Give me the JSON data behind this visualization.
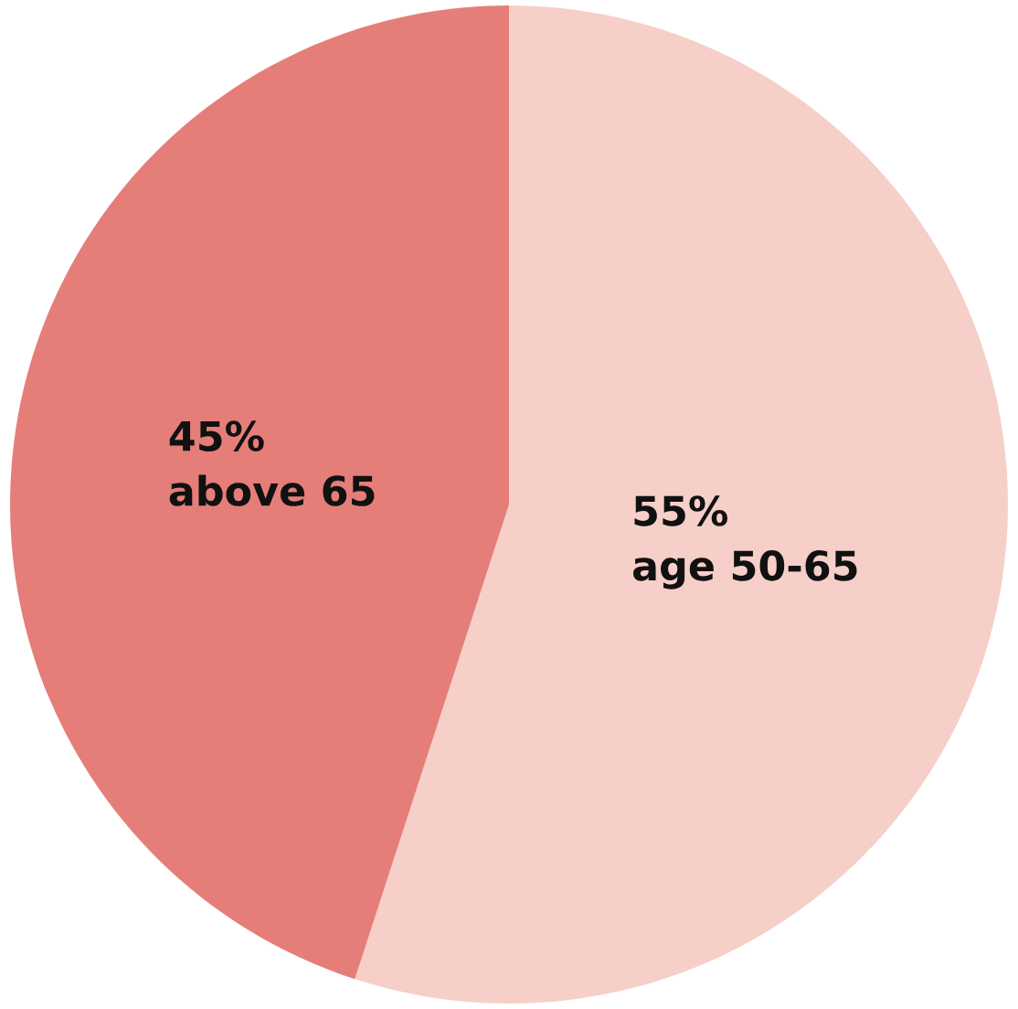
{
  "chart_data": {
    "type": "pie",
    "categories": [
      "age 50-65",
      "above 65"
    ],
    "values": [
      55,
      45
    ],
    "colors": [
      "#f6cfc8",
      "#e57e79"
    ],
    "value_labels": [
      "55%",
      "45%"
    ]
  }
}
